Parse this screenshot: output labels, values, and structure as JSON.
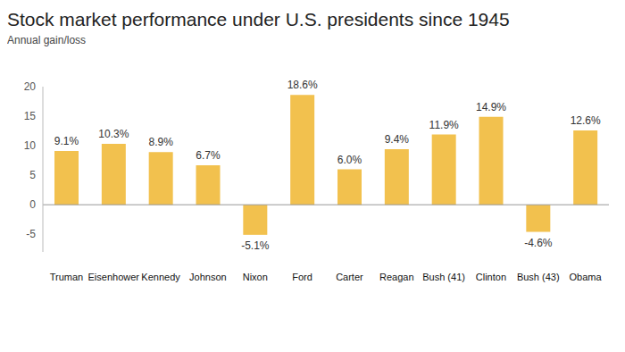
{
  "chart_data": {
    "type": "bar",
    "title": "Stock market performance under U.S. presidents since 1945",
    "subtitle": "Annual gain/loss",
    "categories": [
      "Truman",
      "Eisenhower",
      "Kennedy",
      "Johnson",
      "Nixon",
      "Ford",
      "Carter",
      "Reagan",
      "Bush (41)",
      "Clinton",
      "Bush (43)",
      "Obama"
    ],
    "values": [
      9.1,
      10.3,
      8.9,
      6.7,
      -5.1,
      18.6,
      6.0,
      9.4,
      11.9,
      14.9,
      -4.6,
      12.6
    ],
    "value_labels": [
      "9.1%",
      "10.3%",
      "8.9%",
      "6.7%",
      "-5.1%",
      "18.6%",
      "6.0%",
      "9.4%",
      "11.9%",
      "14.9%",
      "-4.6%",
      "12.6%"
    ],
    "color": "#f2c14e",
    "ylim": [
      -8,
      20
    ],
    "yticks": [
      -5,
      0,
      5,
      10,
      15,
      20
    ],
    "grid": false,
    "data_labels": true
  }
}
